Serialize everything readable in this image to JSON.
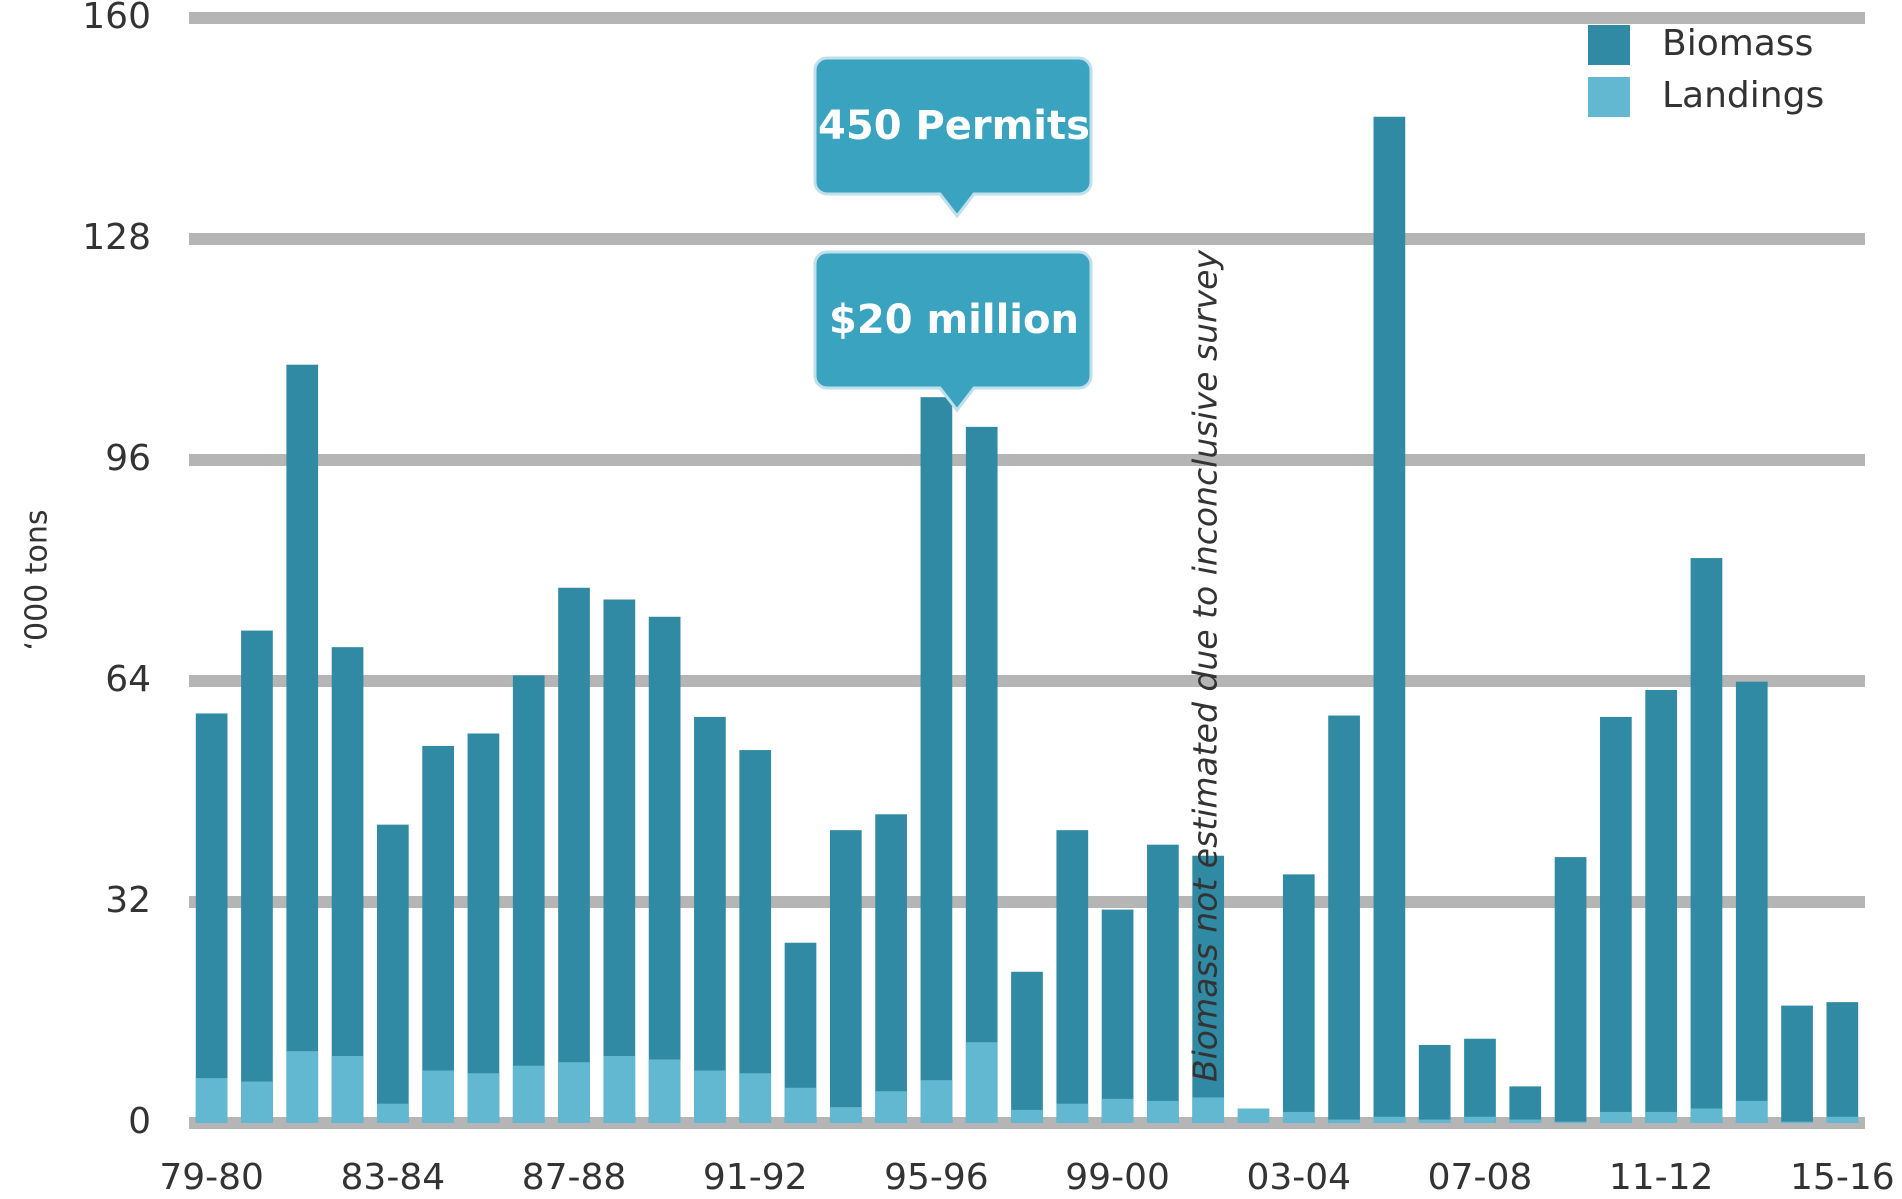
{
  "chart_data": {
    "type": "bar",
    "y_label": "‘000 tons",
    "categories": [
      "79-80",
      null,
      null,
      null,
      "83-84",
      null,
      null,
      null,
      "87-88",
      null,
      null,
      null,
      "91-92",
      null,
      null,
      null,
      "95-96",
      null,
      null,
      null,
      "99-00",
      null,
      null,
      null,
      "03-04",
      null,
      null,
      null,
      "07-08",
      null,
      null,
      null,
      "11-12",
      null,
      null,
      null,
      "15-16"
    ],
    "series": [
      {
        "name": "Biomass",
        "color": "#318aa3",
        "values": [
          59.3,
          71.3,
          109.8,
          68.9,
          43.2,
          54.6,
          56.4,
          64.8,
          77.5,
          75.8,
          73.3,
          58.8,
          54.0,
          26.1,
          42.4,
          44.7,
          105.1,
          100.8,
          21.9,
          42.4,
          30.9,
          40.3,
          38.7,
          null,
          36.0,
          59.0,
          145.7,
          11.3,
          12.2,
          5.3,
          38.5,
          58.8,
          62.7,
          81.8,
          63.9,
          17.0,
          17.5
        ]
      },
      {
        "name": "Landings",
        "color": "#62b8d0",
        "values": [
          6.5,
          6.0,
          10.4,
          9.7,
          2.8,
          7.6,
          7.2,
          8.3,
          8.8,
          9.7,
          9.2,
          7.6,
          7.2,
          5.1,
          2.3,
          4.6,
          6.2,
          11.7,
          1.9,
          2.8,
          3.5,
          3.2,
          3.7,
          2.1,
          1.6,
          0.5,
          0.9,
          0.5,
          0.9,
          0.5,
          0.2,
          1.6,
          1.6,
          2.1,
          3.2,
          0.2,
          0.9
        ]
      }
    ],
    "annotations": [
      "450 Permits",
      "$20 million",
      "Biomass not estimated due to inconclusive survey"
    ],
    "ylim": [
      0,
      160
    ],
    "yticks": [
      0,
      32,
      64,
      96,
      128,
      160
    ],
    "grid": true,
    "legend": "top-right"
  }
}
